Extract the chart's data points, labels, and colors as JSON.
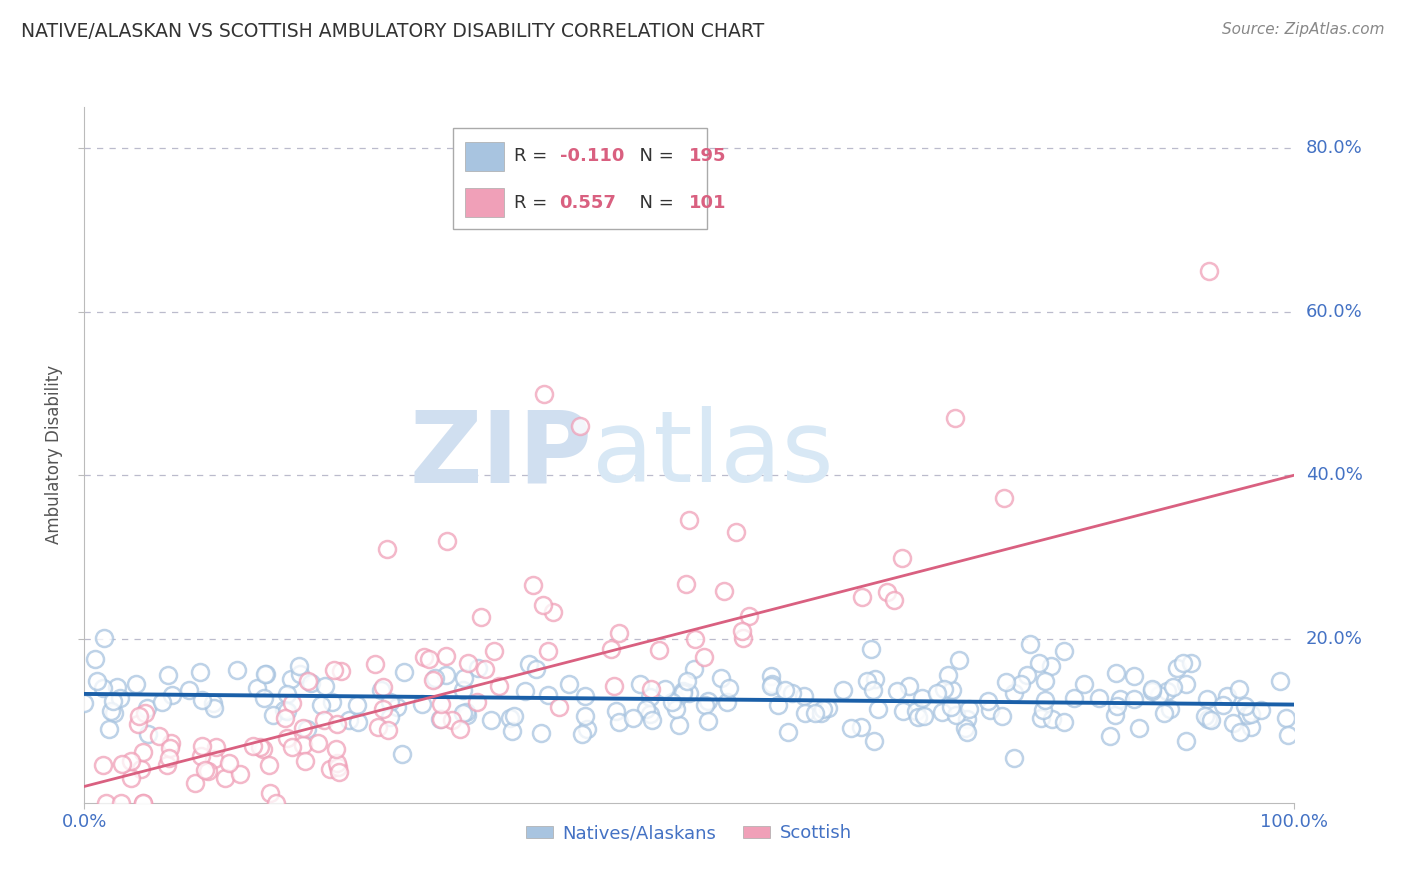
{
  "title": "NATIVE/ALASKAN VS SCOTTISH AMBULATORY DISABILITY CORRELATION CHART",
  "source_text": "Source: ZipAtlas.com",
  "ylabel": "Ambulatory Disability",
  "xlim": [
    0.0,
    1.0
  ],
  "ylim": [
    0.0,
    0.85
  ],
  "ytick_vals": [
    0.2,
    0.4,
    0.6,
    0.8
  ],
  "ytick_labels": [
    "20.0%",
    "40.0%",
    "60.0%",
    "80.0%"
  ],
  "xtick_labels": [
    "0.0%",
    "100.0%"
  ],
  "blue_color": "#a8c4e0",
  "pink_color": "#f0a0b8",
  "blue_line_color": "#1a5fa8",
  "pink_line_color": "#d96080",
  "tick_label_color": "#4472c4",
  "grid_color": "#bbbbcc",
  "watermark_color": "#d0dff0",
  "blue_N": 195,
  "pink_N": 101,
  "blue_intercept": 0.133,
  "blue_slope": -0.013,
  "pink_intercept": 0.02,
  "pink_slope": 0.38
}
